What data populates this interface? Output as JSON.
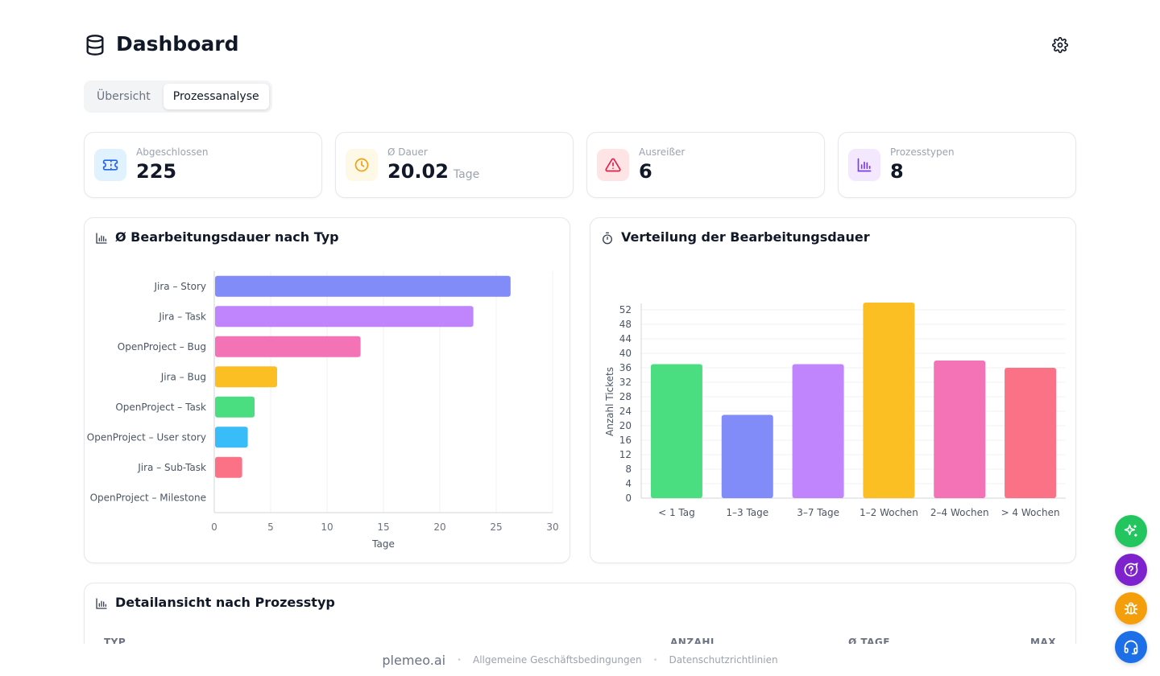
{
  "header": {
    "title": "Dashboard",
    "title_icon": "database-icon",
    "settings_icon": "gear-icon"
  },
  "tabs": [
    {
      "label": "Übersicht",
      "active": false
    },
    {
      "label": "Prozessanalyse",
      "active": true
    }
  ],
  "stats": [
    {
      "label": "Abgeschlossen",
      "value": "225",
      "unit": "",
      "icon": "ticket-icon",
      "color": "#2563eb",
      "bg": "#e0f2fe"
    },
    {
      "label": "Ø Dauer",
      "value": "20.02",
      "unit": "Tage",
      "icon": "clock-icon",
      "color": "#f59e0b",
      "bg": "#fef9e7"
    },
    {
      "label": "Ausreißer",
      "value": "6",
      "unit": "",
      "icon": "warning-icon",
      "color": "#e11d48",
      "bg": "#ffe4e6"
    },
    {
      "label": "Prozesstypen",
      "value": "8",
      "unit": "",
      "icon": "bar-chart-icon",
      "color": "#7c3aed",
      "bg": "#f3e8ff"
    }
  ],
  "card_duration": {
    "title": "Ø Bearbeitungsdauer nach Typ"
  },
  "card_distribution": {
    "title": "Verteilung der Bearbeitungsdauer"
  },
  "card_detail": {
    "title": "Detailansicht nach Prozesstyp",
    "columns": [
      "TYP",
      "ANZAHL",
      "Ø TAGE",
      "MAX"
    ]
  },
  "chart_data": [
    {
      "type": "bar",
      "orientation": "horizontal",
      "categories": [
        "Jira – Story",
        "Jira – Task",
        "OpenProject – Bug",
        "Jira – Bug",
        "OpenProject – Task",
        "OpenProject – User story",
        "Jira – Sub-Task",
        "OpenProject – Milestone"
      ],
      "values": [
        26.2,
        22.9,
        12.9,
        5.5,
        3.5,
        2.9,
        2.4,
        0
      ],
      "colors": [
        "#818cf8",
        "#c084fc",
        "#f472b6",
        "#fbbf24",
        "#4ade80",
        "#38bdf8",
        "#fb7185",
        "#d1d5db"
      ],
      "xlabel": "Tage",
      "xlim": [
        0,
        30
      ],
      "xticks": [
        0,
        5,
        10,
        15,
        20,
        25,
        30
      ],
      "grid": true
    },
    {
      "type": "bar",
      "orientation": "vertical",
      "categories": [
        "< 1 Tag",
        "1–3 Tage",
        "3–7 Tage",
        "1–2 Wochen",
        "2–4 Wochen",
        "> 4 Wochen"
      ],
      "values": [
        37,
        23,
        37,
        54,
        38,
        36
      ],
      "colors": [
        "#4ade80",
        "#818cf8",
        "#c084fc",
        "#fbbf24",
        "#f472b6",
        "#fb7185"
      ],
      "ylabel": "Anzahl Tickets",
      "ylim": [
        0,
        52
      ],
      "yticks": [
        0,
        4,
        8,
        12,
        16,
        20,
        24,
        28,
        32,
        36,
        40,
        44,
        48,
        52
      ],
      "grid": true
    }
  ],
  "footer": {
    "brand": "plemeo.ai",
    "links": [
      "Allgemeine Geschäftsbedingungen",
      "Datenschutzrichtlinien"
    ]
  },
  "fabs": [
    {
      "icon": "sparkle-icon",
      "color": "#22c55e"
    },
    {
      "icon": "help-chat-icon",
      "color": "#7e22ce"
    },
    {
      "icon": "bug-icon",
      "color": "#f59e0b"
    },
    {
      "icon": "headset-icon",
      "color": "#1d6fe8"
    }
  ]
}
